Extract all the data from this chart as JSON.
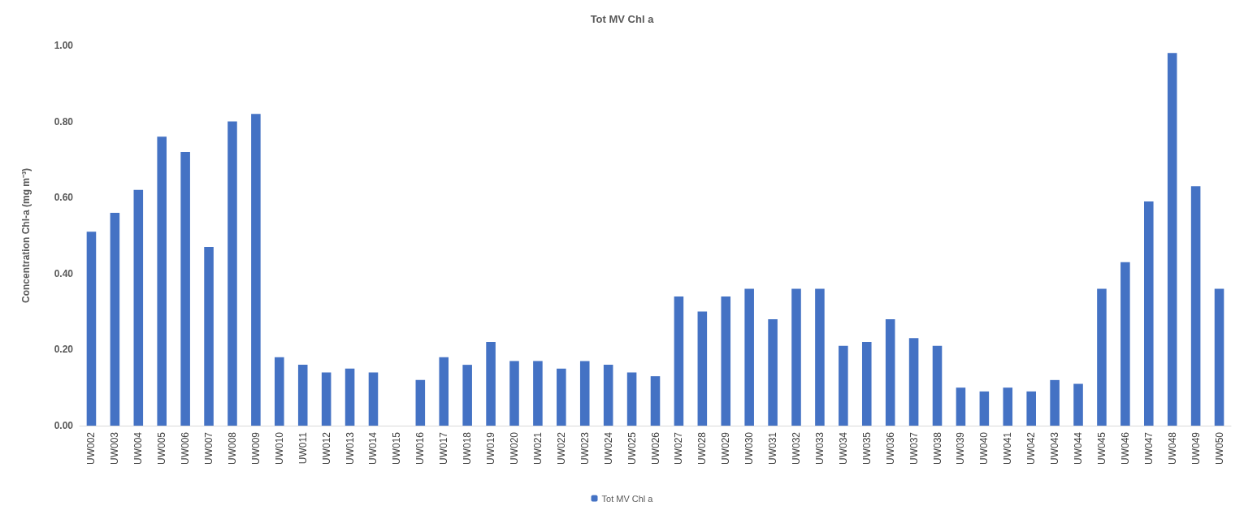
{
  "chart_data": {
    "type": "bar",
    "title": "Tot MV Chl a",
    "ylabel": "Concentration Chl-a (mg m⁻³)",
    "categories": [
      "UW002",
      "UW003",
      "UW004",
      "UW005",
      "UW006",
      "UW007",
      "UW008",
      "UW009",
      "UW010",
      "UW011",
      "UW012",
      "UW013",
      "UW014",
      "UW015",
      "UW016",
      "UW017",
      "UW018",
      "UW019",
      "UW020",
      "UW021",
      "UW022",
      "UW023",
      "UW024",
      "UW025",
      "UW026",
      "UW027",
      "UW028",
      "UW029",
      "UW030",
      "UW031",
      "UW032",
      "UW033",
      "UW034",
      "UW035",
      "UW036",
      "UW037",
      "UW038",
      "UW039",
      "UW040",
      "UW041",
      "UW042",
      "UW043",
      "UW044",
      "UW045",
      "UW046",
      "UW047",
      "UW048",
      "UW049",
      "UW050"
    ],
    "series": [
      {
        "name": "Tot MV Chl a",
        "color": "#4472c4",
        "values": [
          0.51,
          0.56,
          0.62,
          0.76,
          0.72,
          0.47,
          0.8,
          0.82,
          0.18,
          0.16,
          0.14,
          0.15,
          0.14,
          null,
          0.12,
          0.18,
          0.16,
          0.22,
          0.17,
          0.17,
          0.15,
          0.17,
          0.16,
          0.14,
          0.13,
          0.34,
          0.3,
          0.34,
          0.36,
          0.28,
          0.36,
          0.36,
          0.21,
          0.22,
          0.28,
          0.23,
          0.21,
          0.1,
          0.09,
          0.1,
          0.09,
          0.12,
          0.11,
          0.36,
          0.43,
          0.59,
          0.98,
          0.63,
          0.36
        ]
      }
    ],
    "ylim": [
      0,
      1
    ],
    "yticks": [
      {
        "value": 0,
        "label": "0.00"
      },
      {
        "value": 0.2,
        "label": "0.20"
      },
      {
        "value": 0.4,
        "label": "0.40"
      },
      {
        "value": 0.6,
        "label": "0.60"
      },
      {
        "value": 0.8,
        "label": "0.80"
      },
      {
        "value": 1,
        "label": "1.00"
      }
    ],
    "grid": false,
    "legend": "bottom"
  }
}
